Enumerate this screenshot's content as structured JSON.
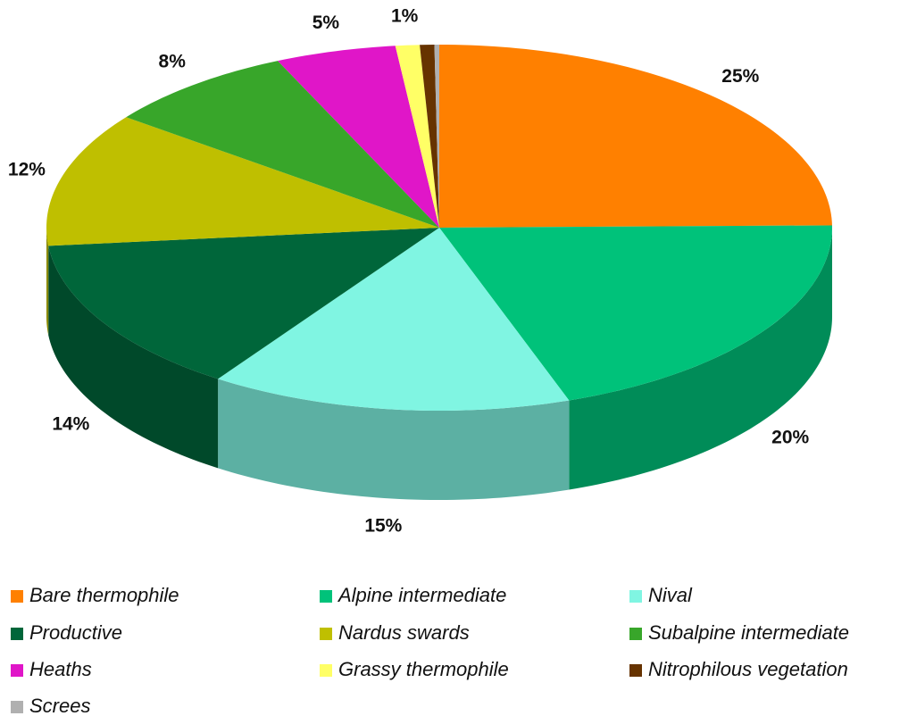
{
  "chart_data": {
    "type": "pie",
    "categories": [
      "Bare thermophile",
      "Alpine intermediate",
      "Nival",
      "Productive",
      "Nardus swards",
      "Subalpine intermediate",
      "Heaths",
      "Grassy thermophile",
      "Nitrophilous vegetation",
      "Screes"
    ],
    "values": [
      25,
      20,
      15,
      14,
      12,
      8,
      5,
      1,
      0.6,
      0.2
    ],
    "value_labels": [
      "25%",
      "20%",
      "15%",
      "14%",
      "12%",
      "8%",
      "5%",
      "1%",
      null,
      null
    ],
    "colors": [
      "#ff8000",
      "#00c27a",
      "#80f5e2",
      "#00663a",
      "#bfbf00",
      "#38a62a",
      "#e016c8",
      "#ffff66",
      "#663300",
      "#b0b0b0"
    ],
    "legend": "bottom"
  }
}
